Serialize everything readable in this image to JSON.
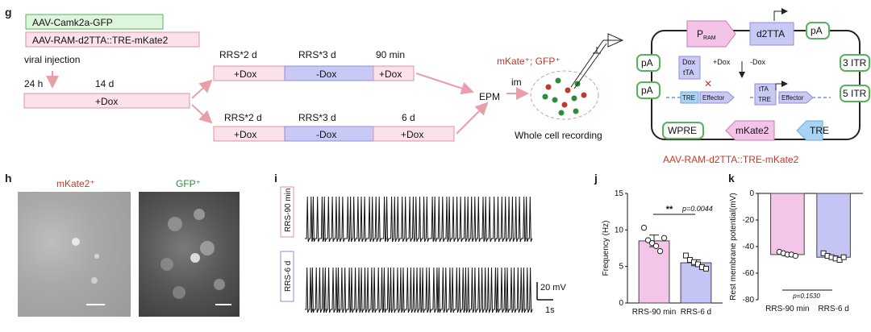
{
  "panels": {
    "g": "g",
    "h": "h",
    "i": "i",
    "j": "j",
    "k": "k"
  },
  "g": {
    "virus1": "AAV-Camk2a-GFP",
    "virus2": "AAV-RAM-d2TTA::TRE-mKate2",
    "viral_injection": "viral injection",
    "time_24h": "24 h",
    "time_14d": "14 d",
    "base_bar": "+Dox",
    "top_row": {
      "headers": [
        "RRS*2 d",
        "RRS*3 d",
        "90 min"
      ],
      "segments": [
        "+Dox",
        "-Dox",
        "+Dox"
      ]
    },
    "bottom_row": {
      "headers": [
        "RRS*2 d",
        "RRS*3 d",
        "6 d"
      ],
      "segments": [
        "+Dox",
        "-Dox",
        "+Dox"
      ]
    },
    "epm": "EPM",
    "im": "im",
    "mkate_gfp": "mKate⁺; GFP⁺",
    "whole_cell": "Whole cell recording",
    "construct": {
      "p_ram": "P",
      "p_ram_sub": "RAM",
      "d2tta": "d2TTA",
      "pa": "pA",
      "itr3": "3 ITR",
      "itr5": "5 ITR",
      "wpre": "WPRE",
      "mkate2": "mKate2",
      "tre": "TRE",
      "dox": "Dox",
      "tta": "tTA",
      "plus_dox": "+Dox",
      "minus_dox": "-Dox",
      "effector": "Effector",
      "tre_small": "TRE",
      "tta2": "tTA",
      "name": "AAV-RAM-d2TTA::TRE-mKate2"
    }
  },
  "h": {
    "label_mkate": "mKate2⁺",
    "label_gfp": "GFP⁺"
  },
  "i": {
    "trace1_label": "RRS-90 min",
    "trace2_label": "RRS-6 d",
    "scale_v": "20 mV",
    "scale_t": "1s"
  },
  "j": {
    "chart_data": {
      "type": "bar",
      "categories": [
        "RRS-90 min",
        "RRS-6 d"
      ],
      "values": [
        8.5,
        5.5
      ],
      "errors": [
        0.8,
        0.4
      ],
      "points": [
        [
          10.3,
          8.6,
          8.2,
          7.8,
          7.1,
          8.9
        ],
        [
          6.5,
          5.9,
          5.6,
          5.3,
          4.9,
          4.7
        ]
      ],
      "ylabel": "Frequency (Hz)",
      "ylim": [
        0,
        15
      ],
      "yticks": [
        "0",
        "5",
        "10",
        "15"
      ],
      "colors": [
        "#f3c6e8",
        "#c4c4f5"
      ],
      "significance": "**",
      "p_label": "p=0.0044"
    }
  },
  "k": {
    "chart_data": {
      "type": "bar",
      "categories": [
        "RRS-90 min",
        "RRS-6 d"
      ],
      "values": [
        -46,
        -48
      ],
      "errors": [
        1,
        1
      ],
      "points": [
        [
          -44,
          -45,
          -46,
          -46,
          -47
        ],
        [
          -45,
          -47,
          -48,
          -49,
          -50,
          -48
        ]
      ],
      "ylabel": "Rest membrane potential(mV)",
      "ylim": [
        -80,
        0
      ],
      "yticks": [
        "0",
        "-20",
        "-40",
        "-60",
        "-80"
      ],
      "colors": [
        "#f3c6e8",
        "#c4c4f5"
      ],
      "p_label": "p=0.1530"
    }
  }
}
